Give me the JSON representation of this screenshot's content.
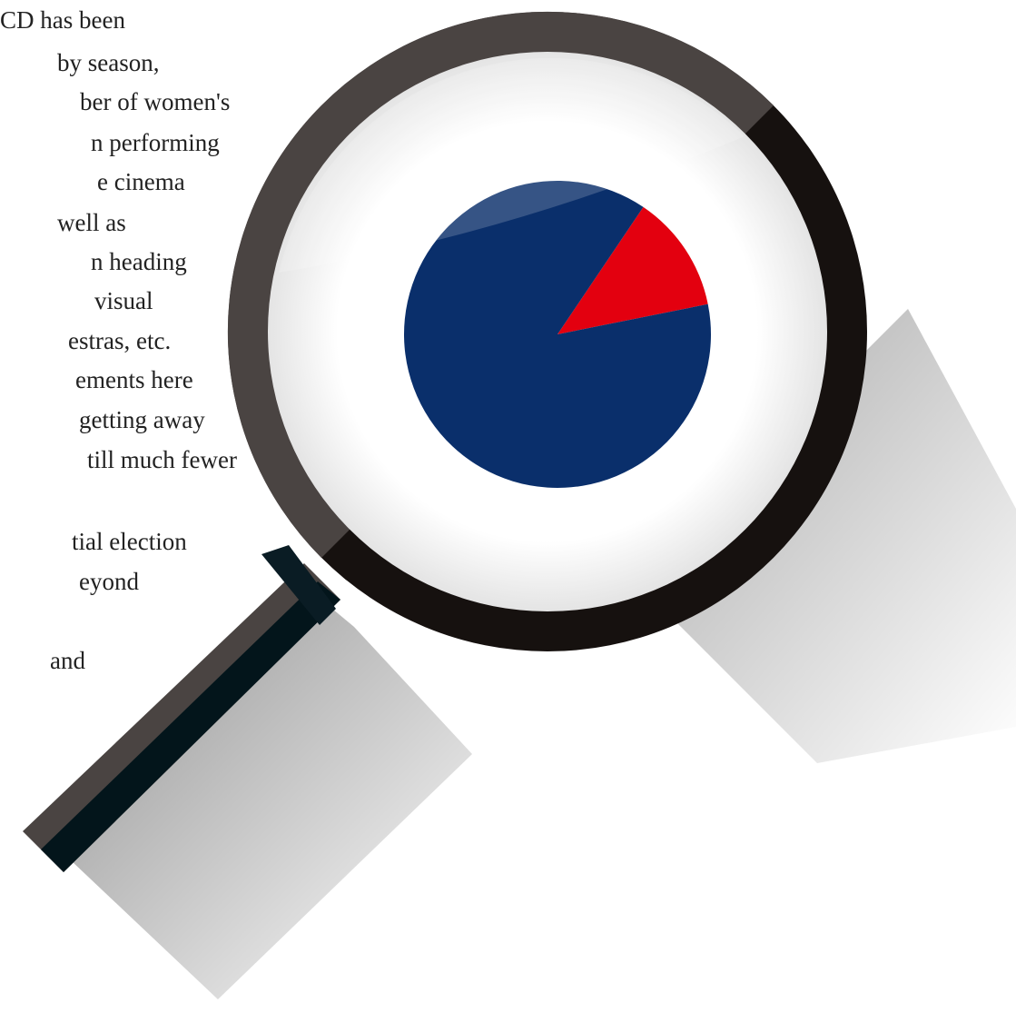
{
  "text_lines": [
    "CD has been",
    "by season,",
    "ber of women's",
    "n performing",
    "e cinema",
    "well as",
    "n heading",
    "visual",
    "estras, etc.",
    "ements here",
    "getting away",
    "till much fewer",
    "tial election",
    "eyond",
    "and"
  ],
  "chart_data": {
    "type": "pie",
    "values": [
      12.4,
      87.6
    ],
    "colors": [
      "#e3000f",
      "#0a2f6b"
    ]
  }
}
